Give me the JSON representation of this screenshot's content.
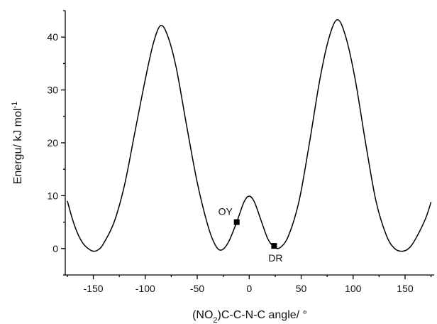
{
  "chart_data": {
    "type": "line",
    "x_label": [
      "(NO",
      "2",
      ")C-C-N-C angle/ °"
    ],
    "y_label": [
      "Energu/ kJ mol",
      "-1"
    ],
    "x": [
      -175,
      -170,
      -165,
      -160,
      -155,
      -150,
      -145,
      -140,
      -130,
      -120,
      -110,
      -100,
      -92,
      -85,
      -78,
      -70,
      -60,
      -50,
      -40,
      -33,
      -27,
      -20,
      -12,
      -5,
      0,
      5,
      12,
      18,
      24,
      30,
      38,
      48,
      58,
      68,
      77,
      85,
      93,
      102,
      112,
      122,
      132,
      140,
      148,
      155,
      162,
      170,
      175
    ],
    "values": [
      9,
      5.5,
      2.8,
      1,
      0,
      -0.5,
      -0.2,
      1,
      5,
      12,
      22,
      32,
      39,
      42.2,
      40,
      34,
      23,
      12.5,
      4.5,
      0.8,
      -0.3,
      1.2,
      5,
      8.8,
      9.9,
      8.8,
      5,
      1.8,
      0.3,
      0.2,
      2.5,
      9,
      20,
      32,
      40,
      43.3,
      40,
      32,
      20,
      9,
      2.5,
      0,
      -0.5,
      0.3,
      2.5,
      5.8,
      8.8
    ],
    "color": "#000000",
    "markers": [
      {
        "label": "OY",
        "x": -12,
        "y": 5
      },
      {
        "label": "DR",
        "x": 24,
        "y": 0.5
      }
    ],
    "xlim": [
      -177,
      178
    ],
    "ylim": [
      -5,
      45
    ],
    "xticks": [
      -150,
      -100,
      -50,
      0,
      50,
      100,
      150
    ],
    "xminorticks": [
      -175,
      -125,
      -75,
      -25,
      25,
      75,
      125,
      175
    ],
    "yticks": [
      0,
      10,
      20,
      30,
      40
    ],
    "yminorticks": [
      -5,
      5,
      15,
      25,
      35,
      45
    ]
  }
}
